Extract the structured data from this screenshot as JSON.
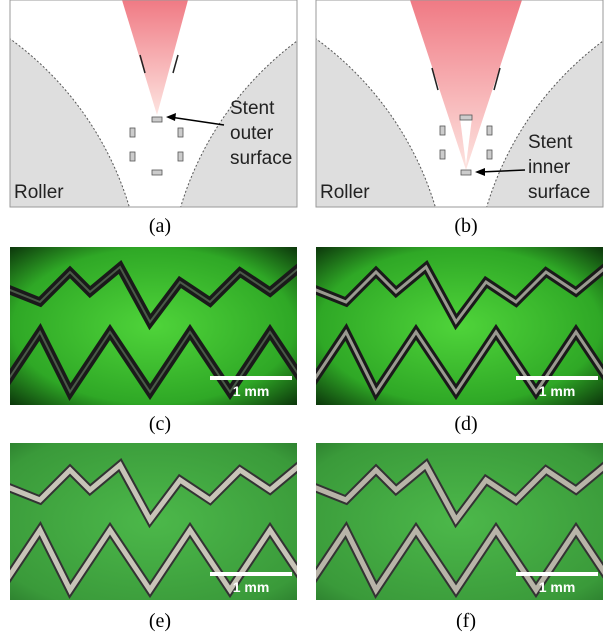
{
  "panels": [
    {
      "label": "(a)",
      "roller": "Roller",
      "annotation": [
        "Stent",
        "outer",
        "surface"
      ]
    },
    {
      "label": "(b)",
      "roller": "Roller",
      "annotation": [
        "Stent",
        "inner",
        "surface"
      ]
    },
    {
      "label": "(c)",
      "scale_bar": "1 mm"
    },
    {
      "label": "(d)",
      "scale_bar": "1 mm"
    },
    {
      "label": "(e)",
      "scale_bar": "1 mm"
    },
    {
      "label": "(f)",
      "scale_bar": "1 mm"
    }
  ]
}
